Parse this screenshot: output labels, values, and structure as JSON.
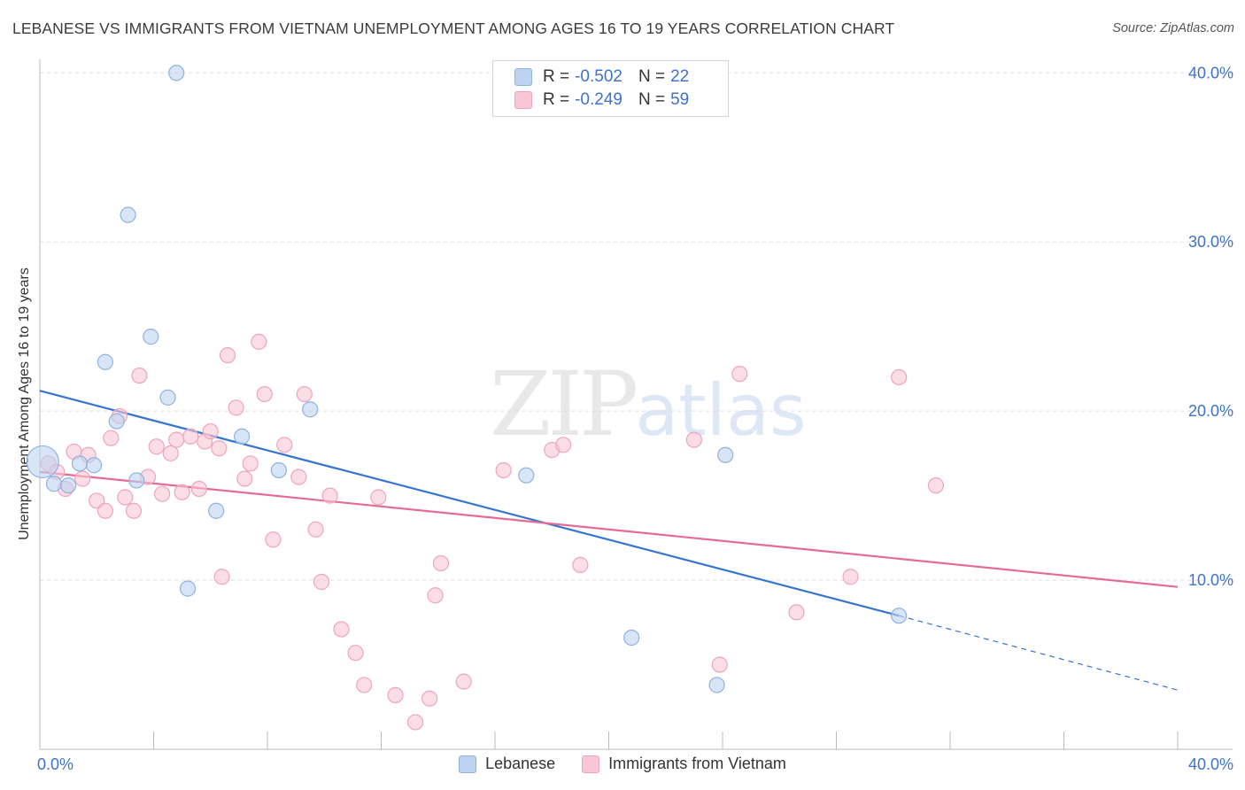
{
  "title": "LEBANESE VS IMMIGRANTS FROM VIETNAM UNEMPLOYMENT AMONG AGES 16 TO 19 YEARS CORRELATION CHART",
  "source": "Source: ZipAtlas.com",
  "watermark": {
    "zip": "ZIP",
    "atlas": "atlas"
  },
  "legend": {
    "rows": [
      {
        "r_label": "R =",
        "r_value": "-0.502",
        "n_label": "N =",
        "n_value": "22"
      },
      {
        "r_label": "R =",
        "r_value": "-0.249",
        "n_label": "N =",
        "n_value": "59"
      }
    ]
  },
  "bottom_legend": {
    "series1": "Lebanese",
    "series2": "Immigrants from Vietnam"
  },
  "chart_data": {
    "type": "scatter",
    "title": "LEBANESE VS IMMIGRANTS FROM VIETNAM UNEMPLOYMENT AMONG AGES 16 TO 19 YEARS CORRELATION CHART",
    "xlabel": "",
    "ylabel": "Unemployment Among Ages 16 to 19 years",
    "xlim": [
      0,
      40
    ],
    "ylim": [
      0,
      40.8
    ],
    "x_tick_labels": [
      "0.0%",
      "40.0%"
    ],
    "y_ticks": [
      10,
      20,
      30,
      40
    ],
    "y_tick_labels": [
      "10.0%",
      "20.0%",
      "30.0%",
      "40.0%"
    ],
    "colors": {
      "lebanese_fill": "#bcd3f2",
      "lebanese_stroke": "#8fb2e0",
      "lebanese_line": "#3674d1",
      "vietnam_fill": "#f8c6d6",
      "vietnam_stroke": "#efa4bd",
      "vietnam_line": "#e46b96",
      "tick_label": "#3d73c9",
      "grid": "#dddddd"
    },
    "series": [
      {
        "name": "Lebanese",
        "r": -0.502,
        "n": 22,
        "trend": {
          "x": [
            0,
            30.2
          ],
          "y": [
            21.2,
            7.9
          ],
          "dashed_to_x": 40,
          "dashed_to_y": 3.5
        },
        "points": [
          {
            "x": 0.1,
            "y": 17.0,
            "big": true
          },
          {
            "x": 0.5,
            "y": 15.7
          },
          {
            "x": 1.0,
            "y": 15.6
          },
          {
            "x": 1.4,
            "y": 16.9
          },
          {
            "x": 1.9,
            "y": 16.8
          },
          {
            "x": 2.3,
            "y": 22.9
          },
          {
            "x": 2.7,
            "y": 19.4
          },
          {
            "x": 3.1,
            "y": 31.6
          },
          {
            "x": 3.4,
            "y": 15.9
          },
          {
            "x": 3.9,
            "y": 24.4
          },
          {
            "x": 4.5,
            "y": 20.8
          },
          {
            "x": 4.8,
            "y": 40.0
          },
          {
            "x": 5.2,
            "y": 9.5
          },
          {
            "x": 6.2,
            "y": 14.1
          },
          {
            "x": 7.1,
            "y": 18.5
          },
          {
            "x": 8.4,
            "y": 16.5
          },
          {
            "x": 9.5,
            "y": 20.1
          },
          {
            "x": 17.1,
            "y": 16.2
          },
          {
            "x": 20.8,
            "y": 6.6
          },
          {
            "x": 23.8,
            "y": 3.8
          },
          {
            "x": 24.1,
            "y": 17.4
          },
          {
            "x": 30.2,
            "y": 7.9
          }
        ]
      },
      {
        "name": "Immigrants from Vietnam",
        "r": -0.249,
        "n": 59,
        "trend": {
          "x": [
            0,
            40
          ],
          "y": [
            16.4,
            9.6
          ]
        },
        "points": [
          {
            "x": 0.3,
            "y": 16.9
          },
          {
            "x": 0.6,
            "y": 16.4
          },
          {
            "x": 0.9,
            "y": 15.4
          },
          {
            "x": 1.2,
            "y": 17.6
          },
          {
            "x": 1.5,
            "y": 16.0
          },
          {
            "x": 1.7,
            "y": 17.4
          },
          {
            "x": 2.0,
            "y": 14.7
          },
          {
            "x": 2.3,
            "y": 14.1
          },
          {
            "x": 2.5,
            "y": 18.4
          },
          {
            "x": 2.8,
            "y": 19.7
          },
          {
            "x": 3.0,
            "y": 14.9
          },
          {
            "x": 3.3,
            "y": 14.1
          },
          {
            "x": 3.5,
            "y": 22.1
          },
          {
            "x": 3.8,
            "y": 16.1
          },
          {
            "x": 4.1,
            "y": 17.9
          },
          {
            "x": 4.3,
            "y": 15.1
          },
          {
            "x": 4.6,
            "y": 17.5
          },
          {
            "x": 4.8,
            "y": 18.3
          },
          {
            "x": 5.0,
            "y": 15.2
          },
          {
            "x": 5.3,
            "y": 18.5
          },
          {
            "x": 5.6,
            "y": 15.4
          },
          {
            "x": 5.8,
            "y": 18.2
          },
          {
            "x": 6.0,
            "y": 18.8
          },
          {
            "x": 6.3,
            "y": 17.8
          },
          {
            "x": 6.4,
            "y": 10.2
          },
          {
            "x": 6.6,
            "y": 23.3
          },
          {
            "x": 6.9,
            "y": 20.2
          },
          {
            "x": 7.2,
            "y": 16.0
          },
          {
            "x": 7.4,
            "y": 16.9
          },
          {
            "x": 7.7,
            "y": 24.1
          },
          {
            "x": 7.9,
            "y": 21.0
          },
          {
            "x": 8.2,
            "y": 12.4
          },
          {
            "x": 8.6,
            "y": 18.0
          },
          {
            "x": 9.1,
            "y": 16.1
          },
          {
            "x": 9.3,
            "y": 21.0
          },
          {
            "x": 9.7,
            "y": 13.0
          },
          {
            "x": 9.9,
            "y": 9.9
          },
          {
            "x": 10.2,
            "y": 15.0
          },
          {
            "x": 10.6,
            "y": 7.1
          },
          {
            "x": 11.1,
            "y": 5.7
          },
          {
            "x": 11.4,
            "y": 3.8
          },
          {
            "x": 11.9,
            "y": 14.9
          },
          {
            "x": 12.5,
            "y": 3.2
          },
          {
            "x": 13.2,
            "y": 1.6
          },
          {
            "x": 13.7,
            "y": 3.0
          },
          {
            "x": 13.9,
            "y": 9.1
          },
          {
            "x": 14.1,
            "y": 11.0
          },
          {
            "x": 14.9,
            "y": 4.0
          },
          {
            "x": 16.3,
            "y": 16.5
          },
          {
            "x": 18.0,
            "y": 17.7
          },
          {
            "x": 18.4,
            "y": 18.0
          },
          {
            "x": 19.0,
            "y": 10.9
          },
          {
            "x": 23.0,
            "y": 18.3
          },
          {
            "x": 23.9,
            "y": 5.0
          },
          {
            "x": 24.6,
            "y": 22.2
          },
          {
            "x": 26.6,
            "y": 8.1
          },
          {
            "x": 28.5,
            "y": 10.2
          },
          {
            "x": 30.2,
            "y": 22.0
          },
          {
            "x": 31.5,
            "y": 15.6
          }
        ]
      }
    ]
  }
}
